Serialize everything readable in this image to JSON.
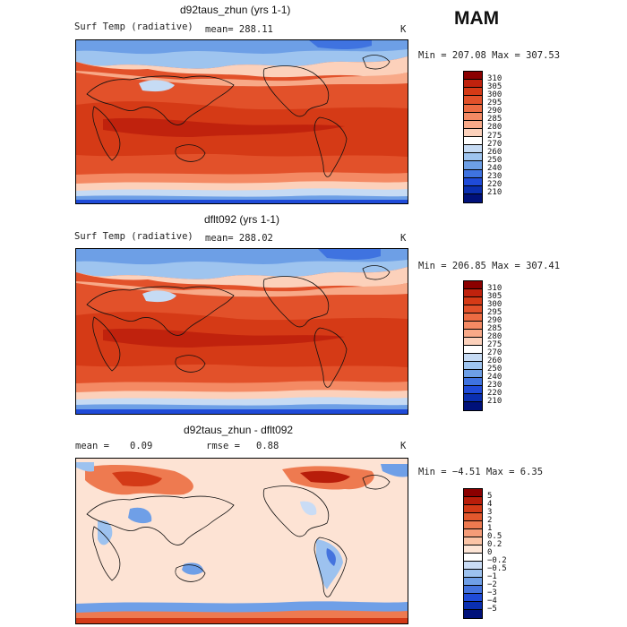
{
  "season": "MAM",
  "panels": [
    {
      "title": "d92taus_zhun (yrs 1-1)",
      "left_label": "Surf Temp (radiative)",
      "mean_label": "mean=  288.11",
      "units": "K",
      "range": "Min = 207.08 Max = 307.53",
      "levels": [
        "310",
        "305",
        "300",
        "295",
        "290",
        "285",
        "280",
        "275",
        "270",
        "260",
        "250",
        "240",
        "230",
        "220",
        "210"
      ],
      "colors": [
        "#8b0000",
        "#c0220d",
        "#d53a16",
        "#e2512a",
        "#ed6c43",
        "#f48a64",
        "#f8a988",
        "#fcd1bb",
        "#ffffff",
        "#c6dbf4",
        "#9ec4ef",
        "#6d9fe6",
        "#3f73e0",
        "#1f4bd8",
        "#0a2fb0",
        "#00117a"
      ]
    },
    {
      "title": "dflt092 (yrs 1-1)",
      "left_label": "Surf Temp (radiative)",
      "mean_label": "mean=  288.02",
      "units": "K",
      "range": "Min = 206.85 Max = 307.41",
      "levels": [
        "310",
        "305",
        "300",
        "295",
        "290",
        "285",
        "280",
        "275",
        "270",
        "260",
        "250",
        "240",
        "230",
        "220",
        "210"
      ],
      "colors": [
        "#8b0000",
        "#c0220d",
        "#d53a16",
        "#e2512a",
        "#ed6c43",
        "#f48a64",
        "#f8a988",
        "#fcd1bb",
        "#ffffff",
        "#c6dbf4",
        "#9ec4ef",
        "#6d9fe6",
        "#3f73e0",
        "#1f4bd8",
        "#0a2fb0",
        "#00117a"
      ]
    },
    {
      "title": "d92taus_zhun - dflt092",
      "mean_word": "mean =",
      "mean_val": "0.09",
      "rmse_word": "rmse =",
      "rmse_val": "0.88",
      "units": "K",
      "range": "Min =  −4.51 Max =   6.35",
      "levels": [
        "5",
        "4",
        "3",
        "2",
        "1",
        "0.5",
        "0.2",
        "0",
        "−0.2",
        "−0.5",
        "−1",
        "−2",
        "−3",
        "−4",
        "−5"
      ],
      "colors": [
        "#8b0000",
        "#b81d0a",
        "#d33a17",
        "#e2582d",
        "#ee7a50",
        "#f59c78",
        "#fbc4a6",
        "#fde5d6",
        "#ffffff",
        "#c9dcf5",
        "#9dc2ef",
        "#6f9fe7",
        "#4473de",
        "#1f4bd8",
        "#0a2fb0",
        "#00117a"
      ]
    }
  ],
  "map_colors": {
    "abs_warm": [
      "#8b0000",
      "#c0220d",
      "#d53a16",
      "#e2512a",
      "#ed6c43",
      "#f48a64",
      "#f8a988",
      "#fcd1bb",
      "#ffffff",
      "#c6dbf4",
      "#9ec4ef",
      "#6d9fe6",
      "#3f73e0",
      "#1f4bd8"
    ],
    "diff_bg": "#fde3d4",
    "coast": "#111111"
  }
}
